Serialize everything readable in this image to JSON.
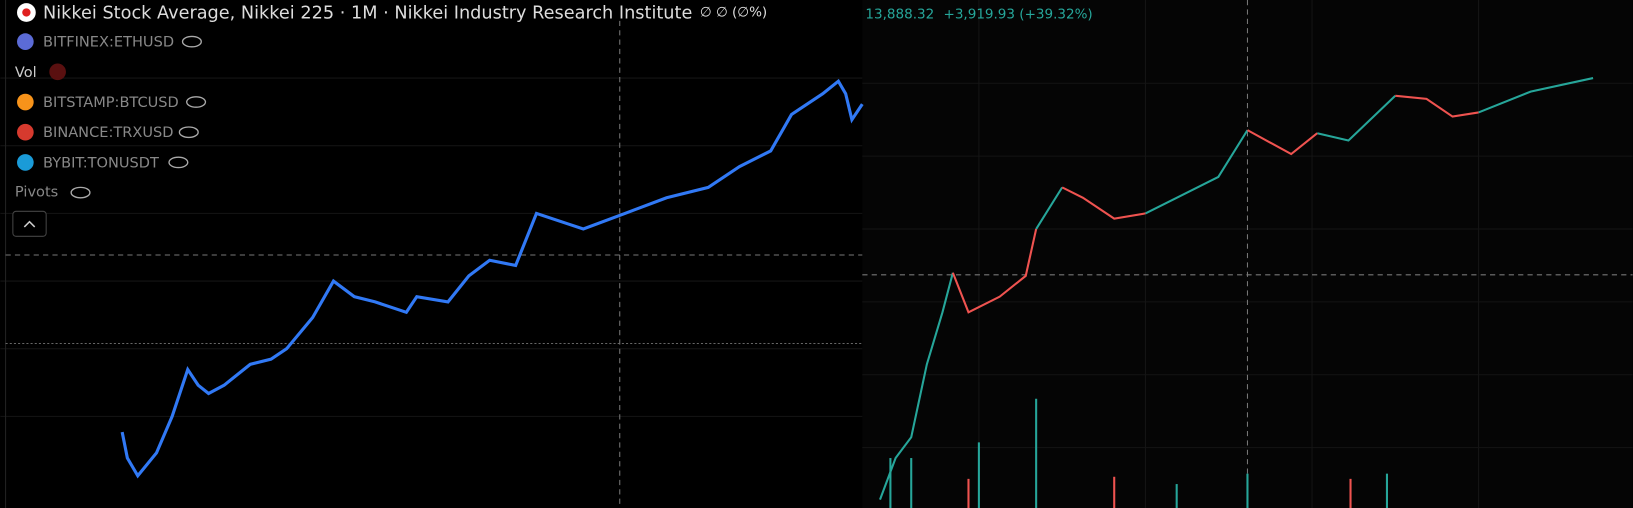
{
  "left_pane": {
    "title": "Nikkei Stock Average, Nikkei 225 · 1M · Nikkei Industry Research Institute",
    "values_text": "∅ ∅ (∅%)",
    "indicators": [
      "BITFINEX:ETHUSD",
      "Vol",
      "BITSTAMP:BTCUSD",
      "BINANCE:TRXUSD",
      "BYBIT:TONUSDT",
      "Pivots"
    ]
  },
  "right_pane": {
    "price": "13,888.32",
    "change": "+3,919.93 (+39.32%)"
  }
}
